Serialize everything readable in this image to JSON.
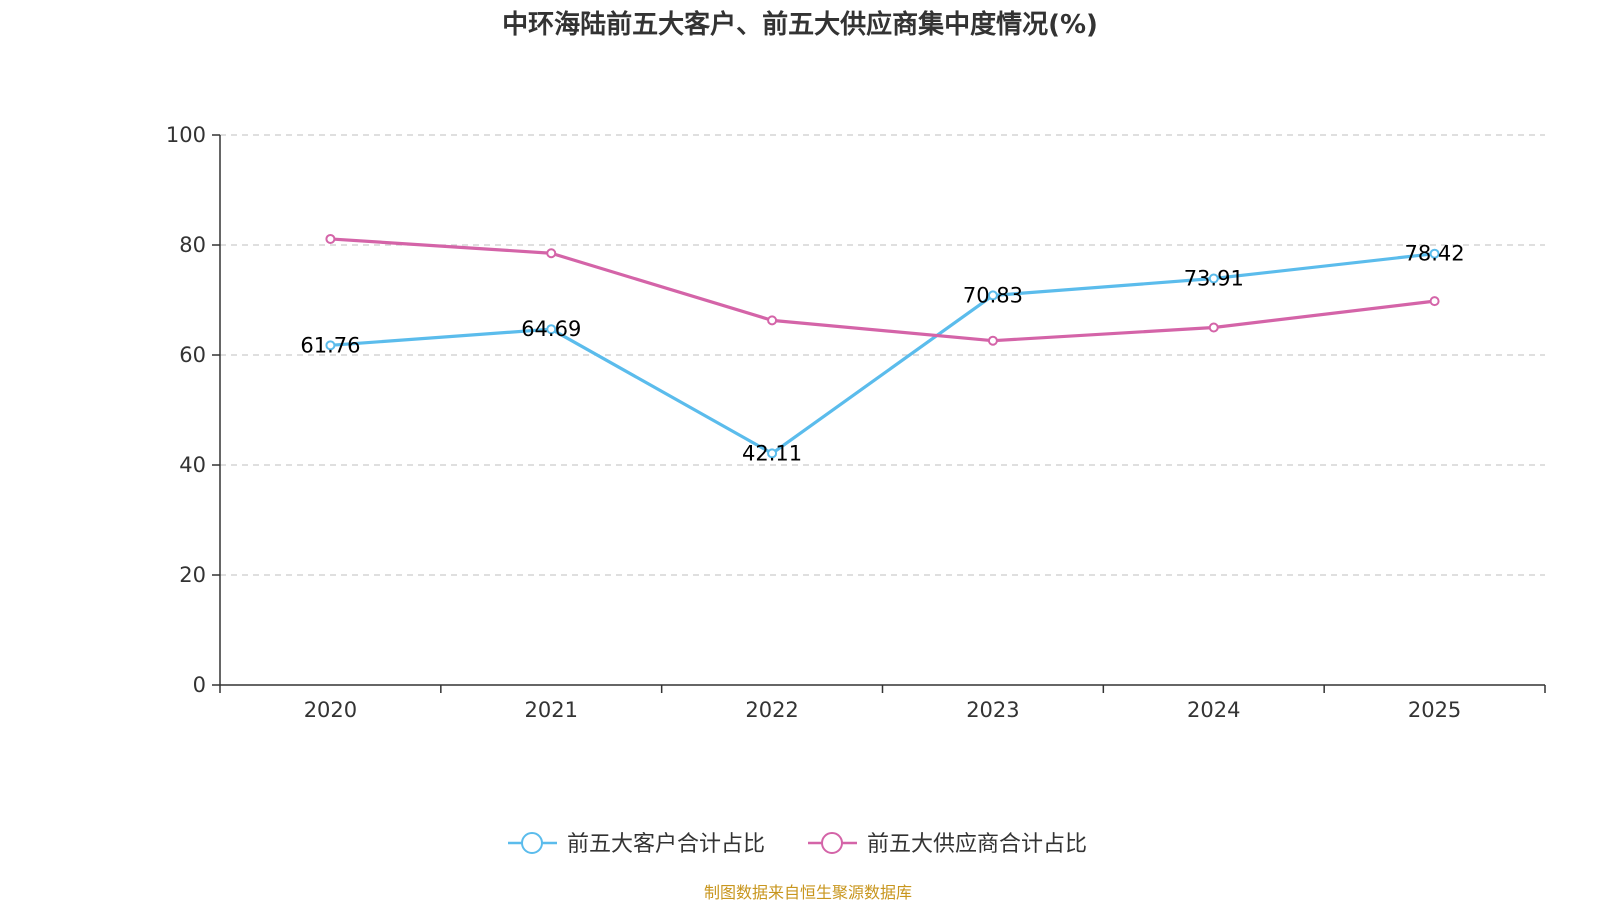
{
  "colors": {
    "customer": "#5bbcec",
    "supplier": "#d464a8",
    "axis": "#333333",
    "grid": "#cccccc",
    "source": "#c8961e"
  },
  "chart_data": {
    "type": "line",
    "title": "中环海陆前五大客户、前五大供应商集中度情况(%)",
    "categories": [
      "2020",
      "2021",
      "2022",
      "2023",
      "2024",
      "2025"
    ],
    "ylim": [
      0,
      100
    ],
    "yticks": [
      "0",
      "20",
      "40",
      "60",
      "80",
      "100"
    ],
    "grid": "horizontal-dashed",
    "legend_position": "bottom-center",
    "series": [
      {
        "name": "前五大客户合计占比",
        "values": [
          61.76,
          64.69,
          42.11,
          70.83,
          73.91,
          78.42
        ],
        "labels": [
          "61.76",
          "64.69",
          "42.11",
          "70.83",
          "73.91",
          "78.42"
        ]
      },
      {
        "name": "前五大供应商合计占比",
        "values": [
          81.1,
          78.5,
          66.3,
          62.6,
          65.0,
          69.8
        ]
      }
    ]
  },
  "source_note": "制图数据来自恒生聚源数据库"
}
